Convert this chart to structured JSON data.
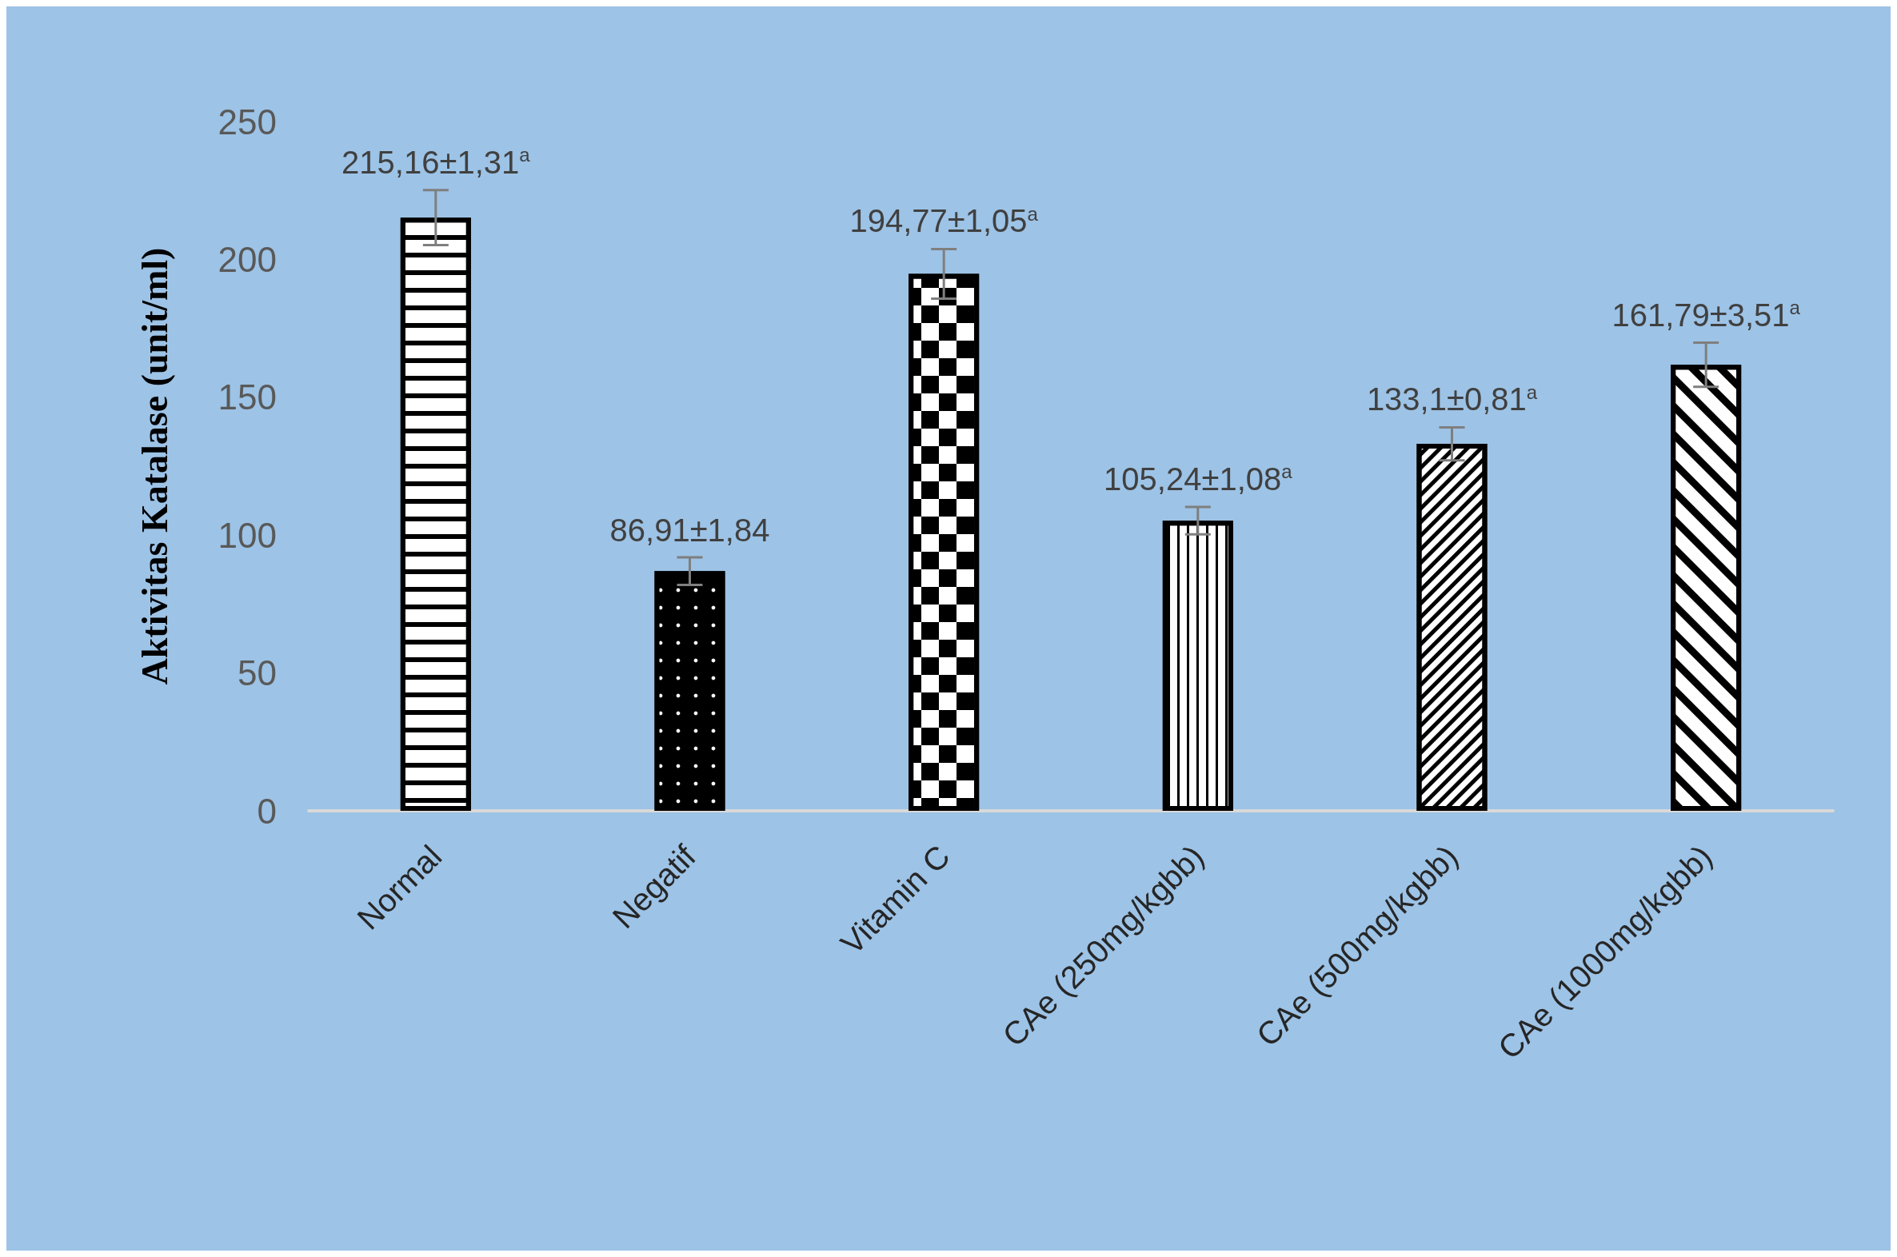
{
  "chart_data": {
    "type": "bar",
    "ylabel": "Aktivitas Katalase (unit/ml)",
    "categories": [
      "Normal",
      "Negatif",
      "Vitamin C",
      "CAe (250mg/kgbb)",
      "CAe (500mg/kgbb)",
      "CAe (1000mg/kgbb)"
    ],
    "values": [
      215.16,
      86.91,
      194.77,
      105.24,
      133.1,
      161.79
    ],
    "errors": [
      10,
      5,
      9,
      5,
      6,
      8
    ],
    "value_labels": [
      "215,16±1,31$^{a}$",
      "86,91±1,84",
      "194,77±1,05$^{a}$",
      "105,24±1,08$^{a}$",
      "133,1±0,81$^{a}$",
      "161,79±3,51$^{a}$"
    ],
    "colors": [
      "#ffffff",
      "#000000",
      "#ffffff",
      "#ffffff",
      "#ffffff",
      "#ffffff"
    ],
    "ylim": [
      0,
      250
    ],
    "yticks": [
      0,
      50,
      100,
      150,
      200,
      250
    ],
    "grid": false
  }
}
